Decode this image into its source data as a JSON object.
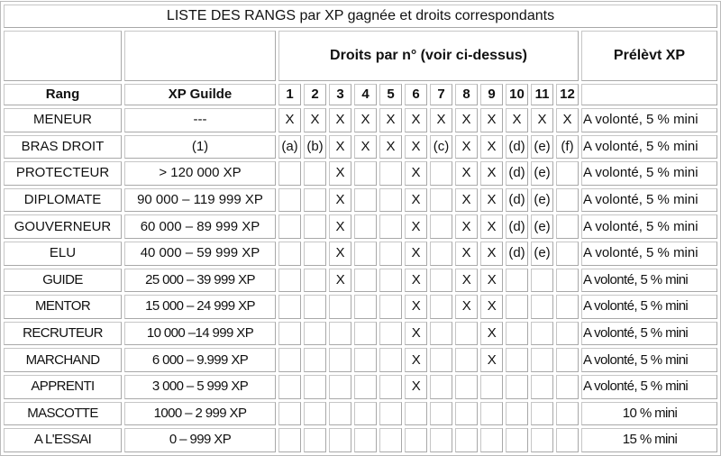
{
  "title": "LISTE DES RANGS par XP gagnée et droits correspondants",
  "header": {
    "droits": "Droits par n° (voir ci-dessus)",
    "prelevement": "Prélèvt XP",
    "rang": "Rang",
    "xp": "XP Guilde",
    "numbers": [
      "1",
      "2",
      "3",
      "4",
      "5",
      "6",
      "7",
      "8",
      "9",
      "10",
      "11",
      "12"
    ]
  },
  "rows": [
    {
      "rang": "MENEUR",
      "xp": "---",
      "droits": [
        "X",
        "X",
        "X",
        "X",
        "X",
        "X",
        "X",
        "X",
        "X",
        "X",
        "X",
        "X"
      ],
      "prelevement": "A volonté, 5 % mini"
    },
    {
      "rang": "BRAS DROIT",
      "xp": "(1)",
      "droits": [
        "(a)",
        "(b)",
        "X",
        "X",
        "X",
        "X",
        "(c)",
        "X",
        "X",
        "(d)",
        "(e)",
        "(f)"
      ],
      "prelevement": "A volonté, 5 % mini"
    },
    {
      "rang": "PROTECTEUR",
      "xp": "> 120 000 XP",
      "droits": [
        "",
        "",
        "X",
        "",
        "",
        "X",
        "",
        "X",
        "X",
        "(d)",
        "(e)",
        ""
      ],
      "prelevement": "A volonté, 5 % mini"
    },
    {
      "rang": "DIPLOMATE",
      "xp": "90 000 – 119 999 XP",
      "droits": [
        "",
        "",
        "X",
        "",
        "",
        "X",
        "",
        "X",
        "X",
        "(d)",
        "(e)",
        ""
      ],
      "prelevement": "A volonté, 5 % mini"
    },
    {
      "rang": "GOUVERNEUR",
      "xp": "60 000 – 89 999 XP",
      "droits": [
        "",
        "",
        "X",
        "",
        "",
        "X",
        "",
        "X",
        "X",
        "(d)",
        "(e)",
        ""
      ],
      "prelevement": "A volonté, 5 % mini"
    },
    {
      "rang": "ELU",
      "xp": "40 000 – 59 999 XP",
      "droits": [
        "",
        "",
        "X",
        "",
        "",
        "X",
        "",
        "X",
        "X",
        "(d)",
        "(e)",
        ""
      ],
      "prelevement": "A volonté, 5 % mini"
    },
    {
      "rang": "GUIDE",
      "xp": "25 000 – 39 999 XP",
      "droits": [
        "",
        "",
        "X",
        "",
        "",
        "X",
        "",
        "X",
        "X",
        "",
        "",
        ""
      ],
      "prelevement": "A volonté, 5 % mini"
    },
    {
      "rang": "MENTOR",
      "xp": "15 000 – 24 999 XP",
      "droits": [
        "",
        "",
        "",
        "",
        "",
        "X",
        "",
        "X",
        "X",
        "",
        "",
        ""
      ],
      "prelevement": "A volonté, 5 % mini"
    },
    {
      "rang": "RECRUTEUR",
      "xp": "10 000 –14 999 XP",
      "droits": [
        "",
        "",
        "",
        "",
        "",
        "X",
        "",
        "",
        "X",
        "",
        "",
        ""
      ],
      "prelevement": "A volonté, 5 % mini"
    },
    {
      "rang": "MARCHAND",
      "xp": "6 000 – 9.999 XP",
      "droits": [
        "",
        "",
        "",
        "",
        "",
        "X",
        "",
        "",
        "X",
        "",
        "",
        ""
      ],
      "prelevement": "A volonté, 5 % mini"
    },
    {
      "rang": "APPRENTI",
      "xp": "3 000 – 5 999 XP",
      "droits": [
        "",
        "",
        "",
        "",
        "",
        "X",
        "",
        "",
        "",
        "",
        "",
        ""
      ],
      "prelevement": "A volonté, 5 % mini"
    },
    {
      "rang": "MASCOTTE",
      "xp": "1000 – 2 999 XP",
      "droits": [
        "",
        "",
        "",
        "",
        "",
        "",
        "",
        "",
        "",
        "",
        "",
        ""
      ],
      "prelevement": "10 % mini"
    },
    {
      "rang": "A L'ESSAI",
      "xp": "0 – 999 XP",
      "droits": [
        "",
        "",
        "",
        "",
        "",
        "",
        "",
        "",
        "",
        "",
        "",
        ""
      ],
      "prelevement": "15 % mini"
    }
  ]
}
